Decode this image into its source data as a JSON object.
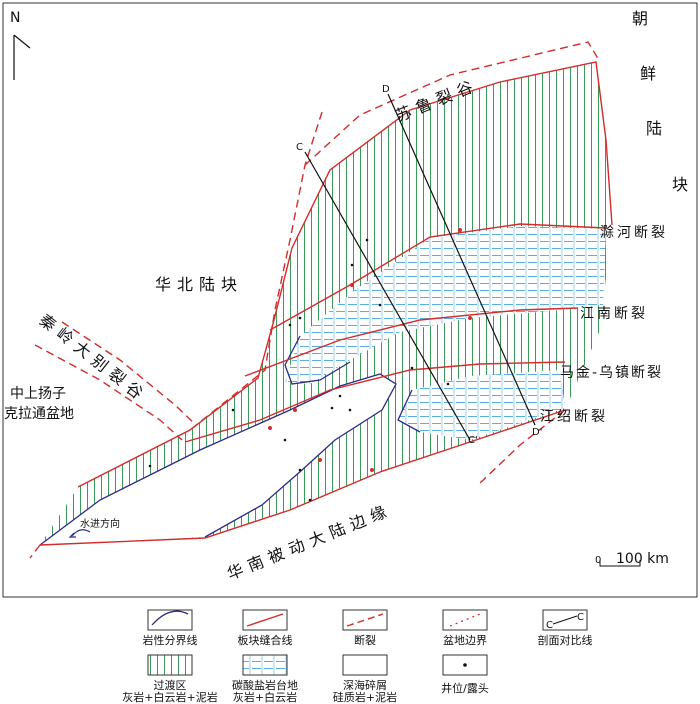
{
  "map": {
    "north": "N",
    "korea_block": [
      "朝",
      "鲜",
      "陆",
      "块"
    ],
    "sulu_rift": "苏鲁裂谷",
    "north_china_block": "华北陆块",
    "qinling_dabie_rift": "秦岭大别裂谷",
    "yangtze_basin": [
      "中上扬子",
      "克拉通盆地"
    ],
    "south_china_margin": "华南被动大陆边缘",
    "transgression": "水进方向",
    "faults": [
      "滁河断裂",
      "江南断裂",
      "马金-乌镇断裂",
      "江绍断裂"
    ],
    "profiles": {
      "c_start": "C",
      "c_end": "C'",
      "d_start": "D",
      "d_end": "D'"
    },
    "scale": {
      "zero": "0",
      "length": "100 km"
    }
  },
  "legend": [
    {
      "label": "岩性分界线"
    },
    {
      "label": "板块缝合线"
    },
    {
      "label": "断裂"
    },
    {
      "label": "盆地边界"
    },
    {
      "label": "剖面对比线",
      "icon_start": "C",
      "icon_end": "C"
    },
    {
      "label": "过渡区",
      "sublabel": "灰岩+白云岩+泥岩"
    },
    {
      "label": "碳酸盐岩台地",
      "sublabel": "灰岩+白云岩"
    },
    {
      "label": "深海碎屑",
      "sublabel": "硅质岩+泥岩"
    },
    {
      "label": "井位/露头"
    }
  ]
}
